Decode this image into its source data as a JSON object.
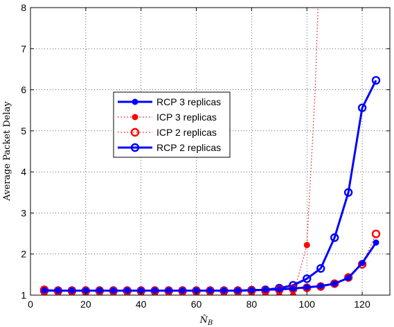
{
  "chart_data": {
    "type": "line",
    "xlabel": "N̂",
    "xlabel_sub": "B",
    "ylabel": "Average Packet Delay",
    "xlim": [
      0,
      130
    ],
    "ylim": [
      1,
      8
    ],
    "xticks": [
      0,
      20,
      40,
      60,
      80,
      100,
      120
    ],
    "yticks": [
      1,
      2,
      3,
      4,
      5,
      6,
      7,
      8
    ],
    "grid": true,
    "legend_placement": "center-left",
    "series": [
      {
        "name": "RCP 3 replicas",
        "color": "#0000ff",
        "line": "solid",
        "marker": "filled-circle",
        "x": [
          5,
          10,
          15,
          20,
          25,
          30,
          35,
          40,
          45,
          50,
          55,
          60,
          65,
          70,
          75,
          80,
          85,
          90,
          95,
          100,
          105,
          110,
          115,
          120,
          125
        ],
        "y": [
          1.12,
          1.11,
          1.11,
          1.11,
          1.11,
          1.11,
          1.11,
          1.11,
          1.11,
          1.11,
          1.11,
          1.11,
          1.11,
          1.11,
          1.11,
          1.12,
          1.13,
          1.14,
          1.16,
          1.19,
          1.22,
          1.28,
          1.42,
          1.78,
          2.28
        ]
      },
      {
        "name": "ICP 3 replicas",
        "color": "#ff0000",
        "line": "dotted",
        "marker": "filled-circle",
        "x": [
          5,
          10,
          15,
          20,
          25,
          30,
          35,
          40,
          45,
          50,
          55,
          60,
          65,
          70,
          75,
          80,
          85,
          90,
          95,
          100,
          103,
          104
        ],
        "y": [
          1.0,
          1.0,
          1.0,
          1.0,
          1.0,
          1.0,
          1.0,
          1.0,
          1.0,
          1.0,
          1.0,
          1.0,
          1.0,
          1.0,
          1.0,
          1.0,
          1.0,
          1.0,
          1.0,
          2.22,
          6.0,
          8.0
        ],
        "marker_count": 20
      },
      {
        "name": "ICP 2 replicas",
        "color": "#ff0000",
        "line": "dotted",
        "marker": "open-circle",
        "x": [
          5,
          10,
          15,
          20,
          25,
          30,
          35,
          40,
          45,
          50,
          55,
          60,
          65,
          70,
          75,
          80,
          85,
          90,
          95,
          100,
          105,
          110,
          115,
          120,
          125
        ],
        "y": [
          1.13,
          1.1,
          1.1,
          1.1,
          1.1,
          1.1,
          1.1,
          1.1,
          1.1,
          1.1,
          1.1,
          1.1,
          1.1,
          1.1,
          1.1,
          1.11,
          1.11,
          1.13,
          1.15,
          1.18,
          1.21,
          1.28,
          1.43,
          1.75,
          2.49
        ]
      },
      {
        "name": "RCP 2 replicas",
        "color": "#0000ff",
        "line": "solid",
        "marker": "open-circle",
        "x": [
          5,
          10,
          15,
          20,
          25,
          30,
          35,
          40,
          45,
          50,
          55,
          60,
          65,
          70,
          75,
          80,
          85,
          90,
          95,
          100,
          105,
          110,
          115,
          120,
          125
        ],
        "y": [
          1.11,
          1.11,
          1.11,
          1.11,
          1.11,
          1.11,
          1.11,
          1.11,
          1.11,
          1.11,
          1.11,
          1.11,
          1.11,
          1.11,
          1.11,
          1.12,
          1.13,
          1.17,
          1.24,
          1.4,
          1.65,
          2.4,
          3.5,
          5.56,
          6.23
        ]
      }
    ]
  }
}
